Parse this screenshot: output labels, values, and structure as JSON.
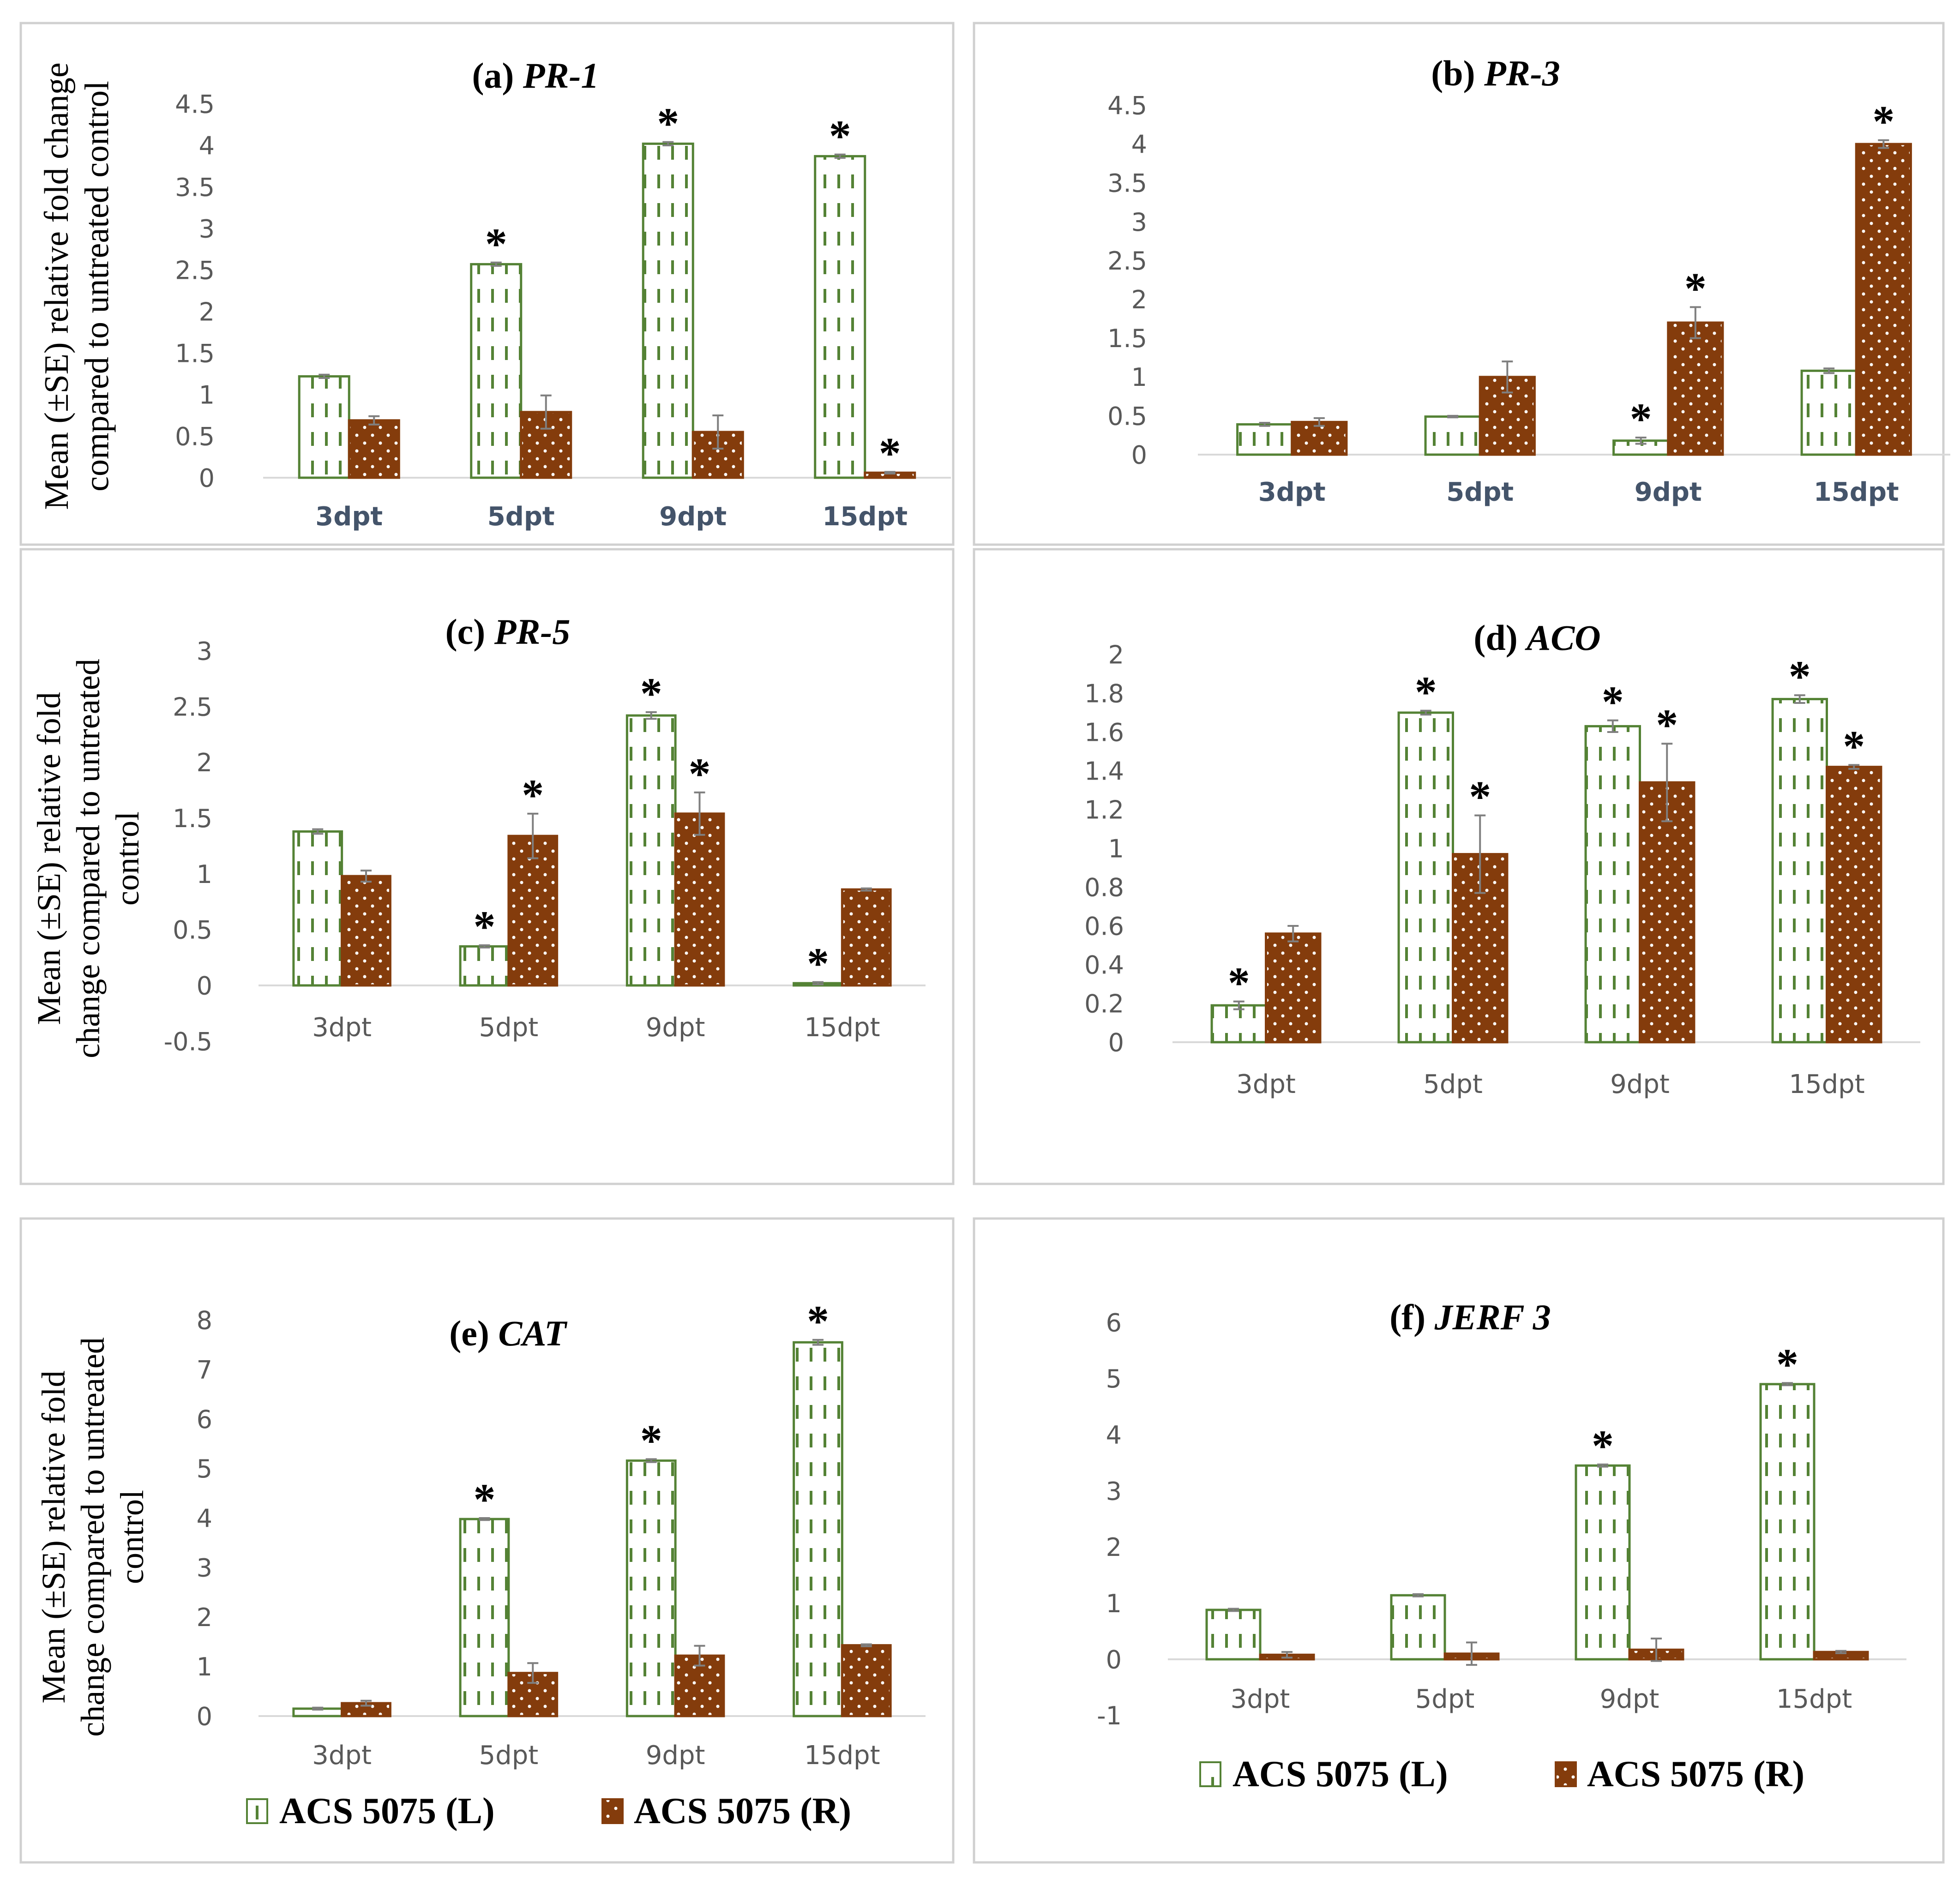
{
  "figure": {
    "legend_labels": [
      "ACS 5075 (L)",
      "ACS 5075 (R)"
    ]
  },
  "colors": {
    "series_L": "#548235",
    "series_R": "#843c0c",
    "axis": "#d9d9d9",
    "error": "#7f7f7f"
  },
  "chart_data": [
    {
      "type": "bar",
      "panel": "a",
      "title_prefix": "(a)",
      "title_gene": "PR-1",
      "ylabel": [
        "Mean (±SE) relative fold change",
        "compared to untreated control"
      ],
      "categories": [
        "3dpt",
        "5dpt",
        "9dpt",
        "15dpt"
      ],
      "ylim": [
        0,
        4.5
      ],
      "yticks": [
        0,
        0.5,
        1,
        1.5,
        2,
        2.5,
        3,
        3.5,
        4,
        4.5
      ],
      "tick_style": "bold",
      "series": [
        {
          "name": "ACS 5075 (L)",
          "values": [
            1.22,
            2.57,
            4.02,
            3.87
          ],
          "errors": [
            0.02,
            0.02,
            0.02,
            0.02
          ],
          "significant": [
            false,
            true,
            true,
            true
          ]
        },
        {
          "name": "ACS 5075 (R)",
          "values": [
            0.69,
            0.79,
            0.55,
            0.06
          ],
          "errors": [
            0.05,
            0.2,
            0.2,
            0.01
          ],
          "significant": [
            false,
            false,
            false,
            true
          ]
        }
      ],
      "significance_marker": "*"
    },
    {
      "type": "bar",
      "panel": "b",
      "title_prefix": "(b)",
      "title_gene": "PR-3",
      "ylabel": [],
      "categories": [
        "3dpt",
        "5dpt",
        "9dpt",
        "15dpt"
      ],
      "ylim": [
        0,
        4.5
      ],
      "yticks": [
        0,
        0.5,
        1,
        1.5,
        2,
        2.5,
        3,
        3.5,
        4,
        4.5
      ],
      "tick_style": "bold",
      "series": [
        {
          "name": "ACS 5075 (L)",
          "values": [
            0.39,
            0.49,
            0.18,
            1.08
          ],
          "errors": [
            0.02,
            0.01,
            0.04,
            0.03
          ],
          "significant": [
            false,
            false,
            true,
            false
          ]
        },
        {
          "name": "ACS 5075 (R)",
          "values": [
            0.42,
            1.0,
            1.7,
            4.0
          ],
          "errors": [
            0.05,
            0.2,
            0.2,
            0.05
          ],
          "significant": [
            false,
            false,
            true,
            true
          ]
        }
      ],
      "significance_marker": "*"
    },
    {
      "type": "bar",
      "panel": "c",
      "title_prefix": "(c)",
      "title_gene": "PR-5",
      "ylabel": [
        "Mean (±SE) relative fold",
        "change compared to untreated",
        "control"
      ],
      "categories": [
        "3dpt",
        "5dpt",
        "9dpt",
        "15dpt"
      ],
      "ylim": [
        -0.5,
        3
      ],
      "yticks": [
        -0.5,
        0,
        0.5,
        1,
        1.5,
        2,
        2.5,
        3
      ],
      "tick_style": "normal",
      "series": [
        {
          "name": "ACS 5075 (L)",
          "values": [
            1.38,
            0.35,
            2.42,
            0.02
          ],
          "errors": [
            0.02,
            0.01,
            0.03,
            0.01
          ],
          "significant": [
            false,
            true,
            true,
            true
          ]
        },
        {
          "name": "ACS 5075 (R)",
          "values": [
            0.98,
            1.34,
            1.54,
            0.86
          ],
          "errors": [
            0.05,
            0.2,
            0.19,
            0.01
          ],
          "significant": [
            false,
            true,
            true,
            false
          ]
        }
      ],
      "significance_marker": "*"
    },
    {
      "type": "bar",
      "panel": "d",
      "title_prefix": "(d)",
      "title_gene": "ACO",
      "ylabel": [],
      "categories": [
        "3dpt",
        "5dpt",
        "9dpt",
        "15dpt"
      ],
      "ylim": [
        0,
        2
      ],
      "yticks": [
        0,
        0.2,
        0.4,
        0.6,
        0.8,
        1,
        1.2,
        1.4,
        1.6,
        1.8,
        2
      ],
      "tick_style": "normal",
      "series": [
        {
          "name": "ACS 5075 (L)",
          "values": [
            0.19,
            1.7,
            1.63,
            1.77
          ],
          "errors": [
            0.02,
            0.01,
            0.03,
            0.02
          ],
          "significant": [
            true,
            true,
            true,
            true
          ]
        },
        {
          "name": "ACS 5075 (R)",
          "values": [
            0.56,
            0.97,
            1.34,
            1.42
          ],
          "errors": [
            0.04,
            0.2,
            0.2,
            0.01
          ],
          "significant": [
            false,
            true,
            true,
            true
          ]
        }
      ],
      "significance_marker": "*"
    },
    {
      "type": "bar",
      "panel": "e",
      "title_prefix": "(e)",
      "title_gene": "CAT",
      "ylabel": [
        "Mean (±SE) relative fold",
        "change compared to untreated",
        "control"
      ],
      "categories": [
        "3dpt",
        "5dpt",
        "9dpt",
        "15dpt"
      ],
      "ylim": [
        0,
        8
      ],
      "yticks": [
        0,
        1,
        2,
        3,
        4,
        5,
        6,
        7,
        8
      ],
      "tick_style": "normal",
      "series": [
        {
          "name": "ACS 5075 (L)",
          "values": [
            0.15,
            3.98,
            5.16,
            7.55
          ],
          "errors": [
            0.02,
            0.02,
            0.03,
            0.05
          ],
          "significant": [
            false,
            true,
            true,
            true
          ]
        },
        {
          "name": "ACS 5075 (R)",
          "values": [
            0.26,
            0.87,
            1.22,
            1.43
          ],
          "errors": [
            0.05,
            0.2,
            0.2,
            0.02
          ],
          "significant": [
            false,
            false,
            false,
            false
          ]
        }
      ],
      "significance_marker": "*"
    },
    {
      "type": "bar",
      "panel": "f",
      "title_prefix": "(f)",
      "title_gene": "JERF 3",
      "ylabel": [],
      "categories": [
        "3dpt",
        "5dpt",
        "9dpt",
        "15dpt"
      ],
      "ylim": [
        -1,
        6
      ],
      "yticks": [
        -1,
        0,
        1,
        2,
        3,
        4,
        5,
        6
      ],
      "tick_style": "normal",
      "series": [
        {
          "name": "ACS 5075 (L)",
          "values": [
            0.88,
            1.14,
            3.45,
            4.9
          ],
          "errors": [
            0.02,
            0.02,
            0.02,
            0.02
          ],
          "significant": [
            false,
            false,
            true,
            true
          ]
        },
        {
          "name": "ACS 5075 (R)",
          "values": [
            0.08,
            0.1,
            0.17,
            0.13
          ],
          "errors": [
            0.05,
            0.2,
            0.2,
            0.02
          ],
          "significant": [
            false,
            false,
            false,
            false
          ]
        }
      ],
      "significance_marker": "*"
    }
  ]
}
